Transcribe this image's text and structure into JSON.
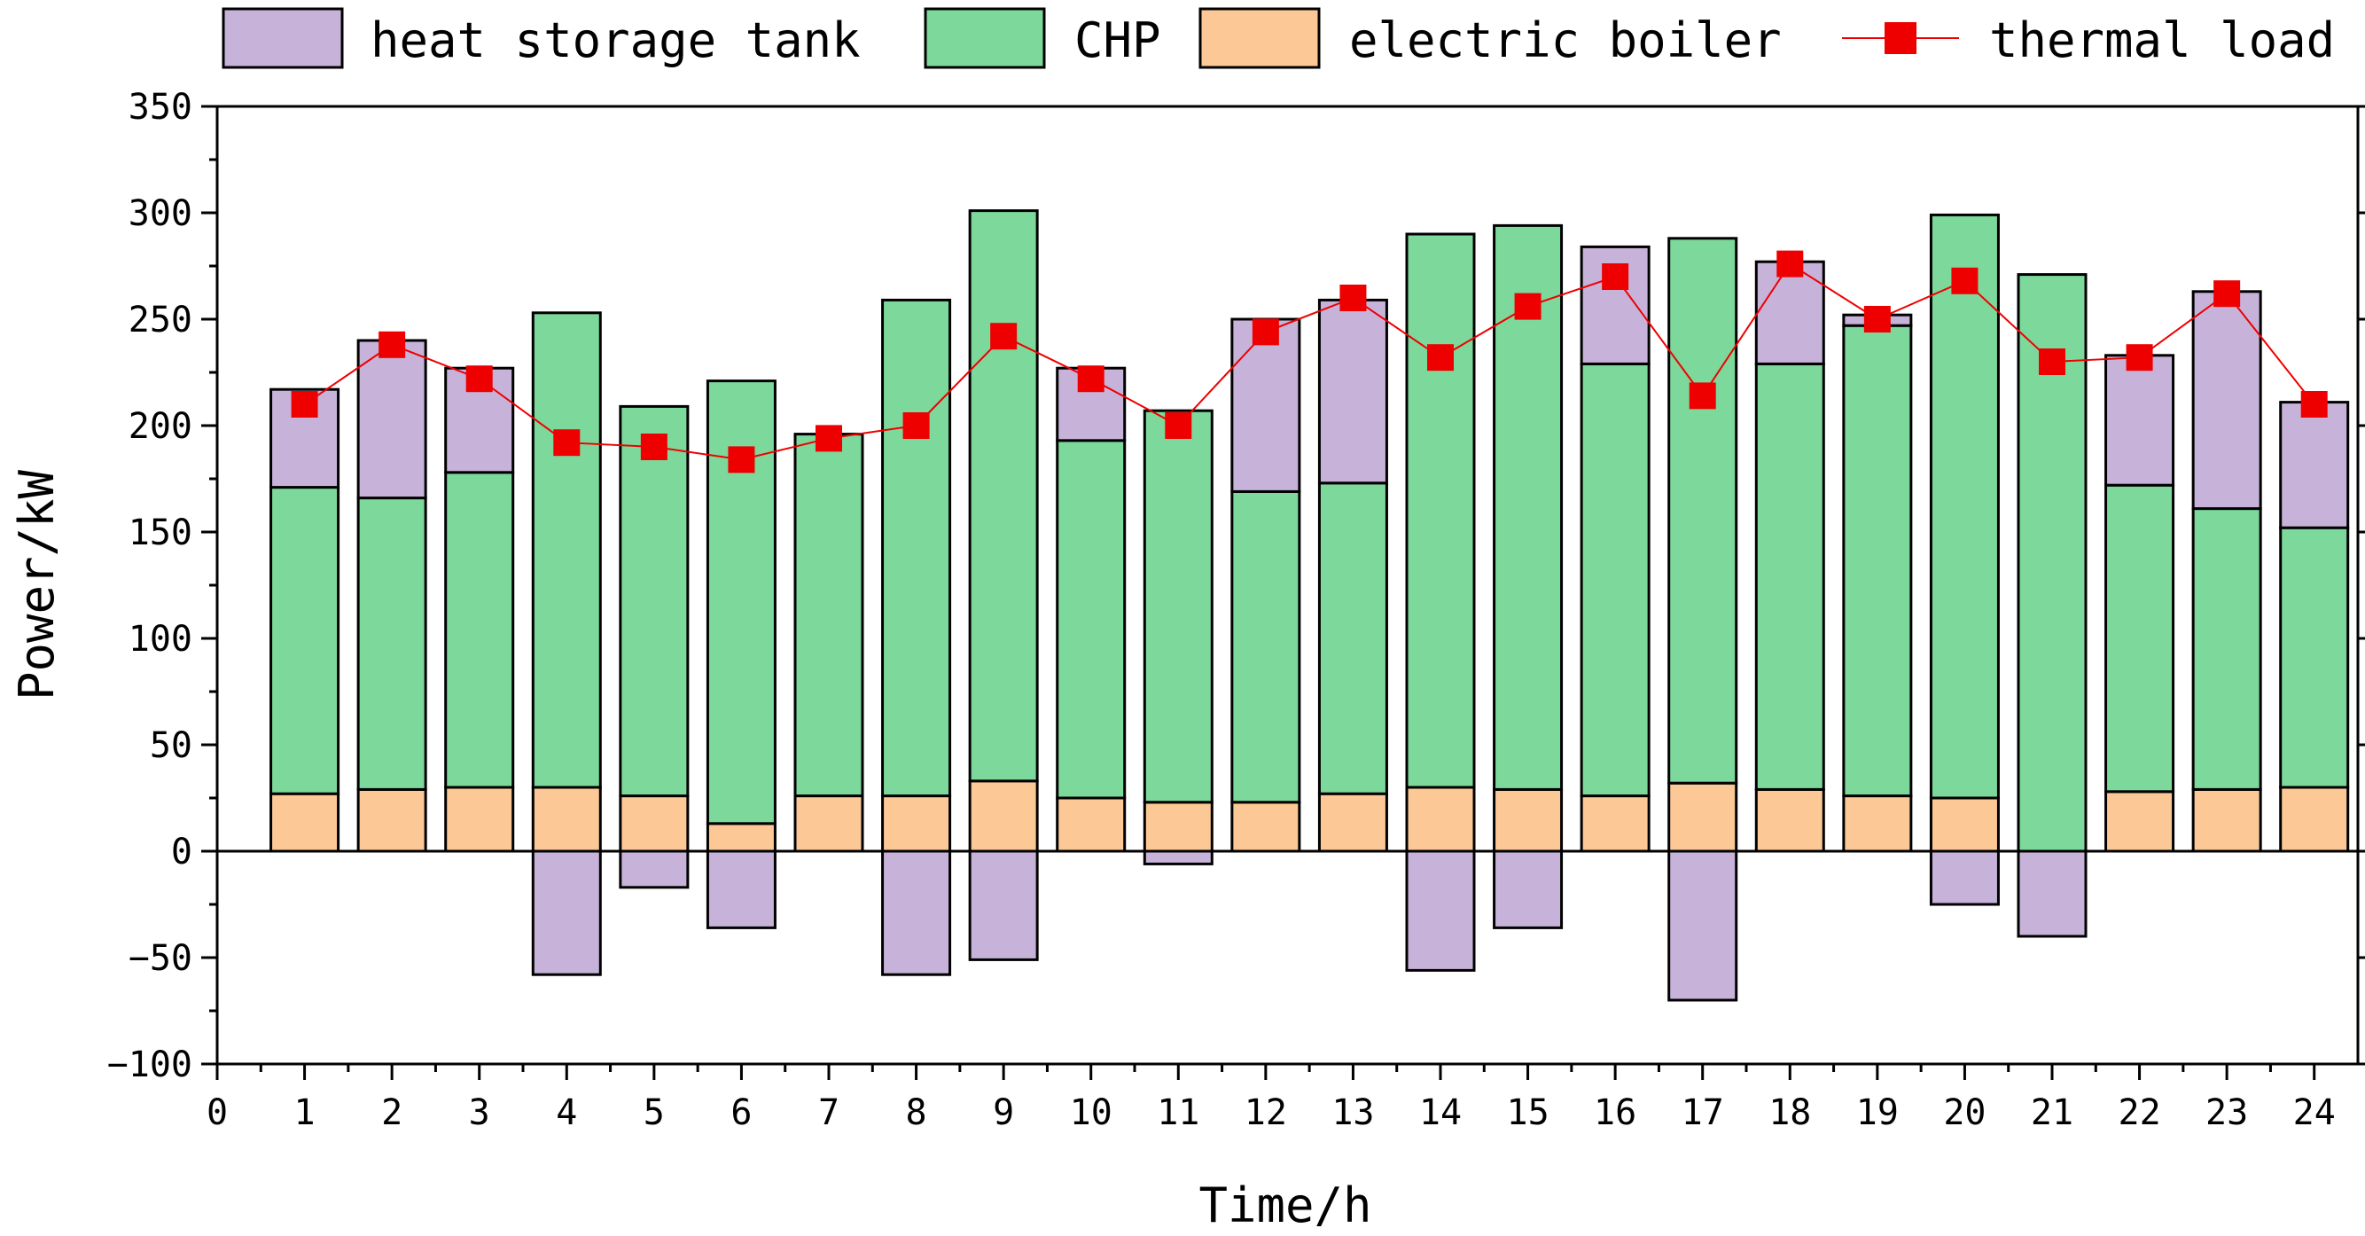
{
  "chart_data": {
    "type": "bar",
    "subtype": "stacked-bar-with-line",
    "xlabel": "Time/h",
    "ylabel": "Power/kW",
    "xlim": [
      0,
      24.5
    ],
    "ylim": [
      -100,
      350
    ],
    "x_ticks": [
      0,
      1,
      2,
      3,
      4,
      5,
      6,
      7,
      8,
      9,
      10,
      11,
      12,
      13,
      14,
      15,
      16,
      17,
      18,
      19,
      20,
      21,
      22,
      23,
      24
    ],
    "y_ticks": [
      -100,
      -50,
      0,
      50,
      100,
      150,
      200,
      250,
      300,
      350
    ],
    "y_tick_labels": [
      "−100",
      "−50",
      "0",
      "50",
      "100",
      "150",
      "200",
      "250",
      "300",
      "350"
    ],
    "legend_position": "top",
    "categories": [
      1,
      2,
      3,
      4,
      5,
      6,
      7,
      8,
      9,
      10,
      11,
      12,
      13,
      14,
      15,
      16,
      17,
      18,
      19,
      20,
      21,
      22,
      23,
      24
    ],
    "series": [
      {
        "name": "electric boiler",
        "kind": "bar",
        "color": "#FCC896",
        "values": [
          27,
          29,
          30,
          30,
          26,
          13,
          26,
          26,
          33,
          25,
          23,
          23,
          27,
          30,
          29,
          26,
          32,
          29,
          26,
          25,
          0,
          28,
          29,
          30
        ]
      },
      {
        "name": "CHP",
        "kind": "bar",
        "color": "#7DD89B",
        "values": [
          144,
          137,
          148,
          223,
          183,
          208,
          170,
          233,
          268,
          168,
          184,
          146,
          146,
          260,
          265,
          203,
          256,
          200,
          221,
          274,
          271,
          144,
          132,
          122
        ]
      },
      {
        "name": "heat storage tank",
        "kind": "bar",
        "color": "#C7B3D9",
        "values": [
          46,
          74,
          49,
          -58,
          -17,
          -36,
          0,
          -58,
          -51,
          34,
          -6,
          81,
          86,
          -56,
          -36,
          55,
          -70,
          48,
          5,
          -25,
          -40,
          61,
          102,
          59
        ]
      },
      {
        "name": "thermal load",
        "kind": "line",
        "color": "#EE0000",
        "values": [
          210,
          238,
          222,
          192,
          190,
          184,
          194,
          200,
          242,
          222,
          200,
          244,
          260,
          232,
          256,
          270,
          214,
          276,
          250,
          268,
          230,
          232,
          262,
          210
        ]
      }
    ],
    "legend": [
      {
        "label": "heat storage tank",
        "color": "#C7B3D9",
        "kind": "bar"
      },
      {
        "label": "CHP",
        "color": "#7DD89B",
        "kind": "bar"
      },
      {
        "label": "electric boiler",
        "color": "#FCC896",
        "kind": "bar"
      },
      {
        "label": "thermal load",
        "color": "#EE0000",
        "kind": "line"
      }
    ]
  }
}
